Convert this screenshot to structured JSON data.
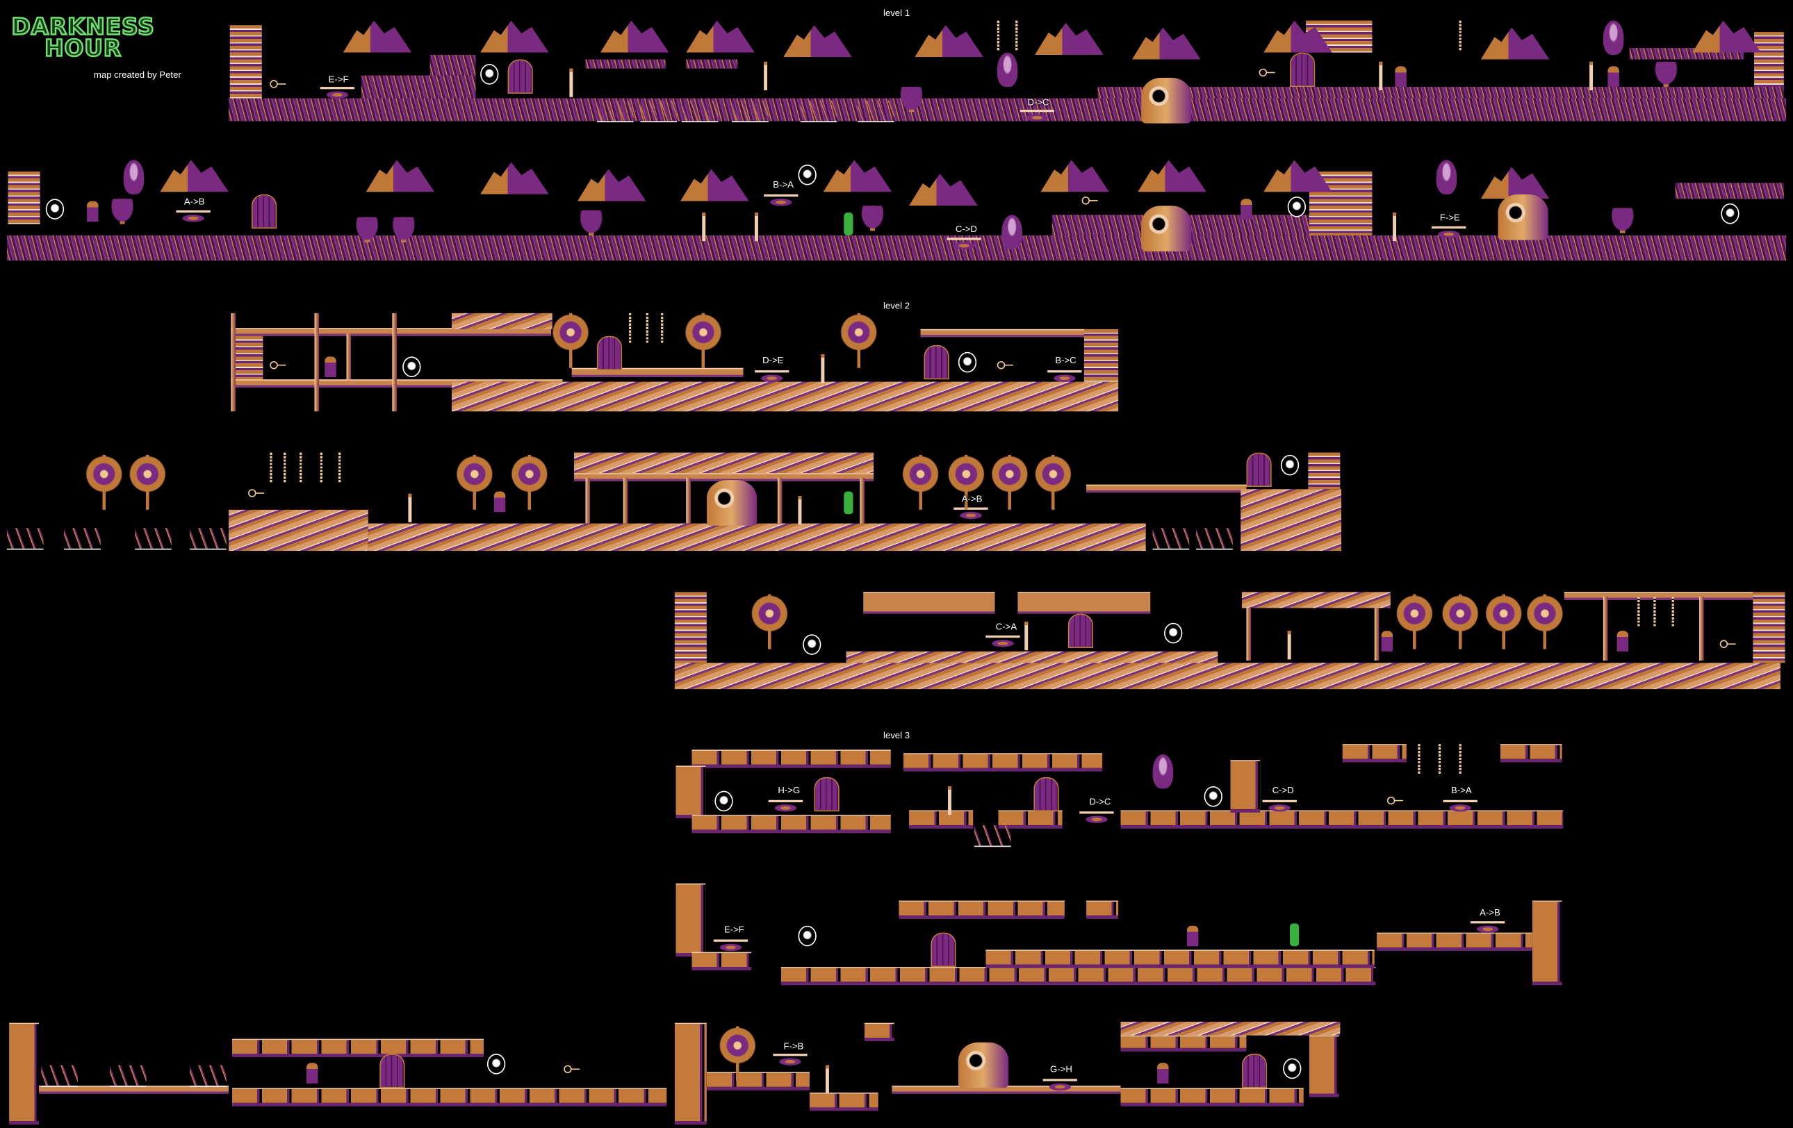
{
  "title": {
    "line1": "DARKNESS",
    "line2": "HOUR",
    "credit": "map created by Peter"
  },
  "colors": {
    "background": "#000000",
    "purple": "#6a2470",
    "orange": "#c07838",
    "cream": "#f0d0b0",
    "logo_green": "#70e070"
  },
  "levels": [
    {
      "label": "level 1",
      "teleports": [
        "E->F",
        "D->C",
        "A->B",
        "B->A",
        "C->D",
        "F->E"
      ]
    },
    {
      "label": "level 2",
      "teleports": [
        "D->E",
        "B->C",
        "A->B",
        "C->A"
      ]
    },
    {
      "label": "level 3",
      "teleports": [
        "H->G",
        "D->C",
        "C->D",
        "B->A",
        "E->F",
        "A->B",
        "F->B",
        "G->H"
      ]
    }
  ],
  "icons": [
    "key-icon",
    "door-icon",
    "orb-icon",
    "teleport-icon",
    "skull-icon",
    "stone-face-icon",
    "spiked-tree-icon",
    "mushroom-icon",
    "hero-icon",
    "ghoul-icon"
  ]
}
